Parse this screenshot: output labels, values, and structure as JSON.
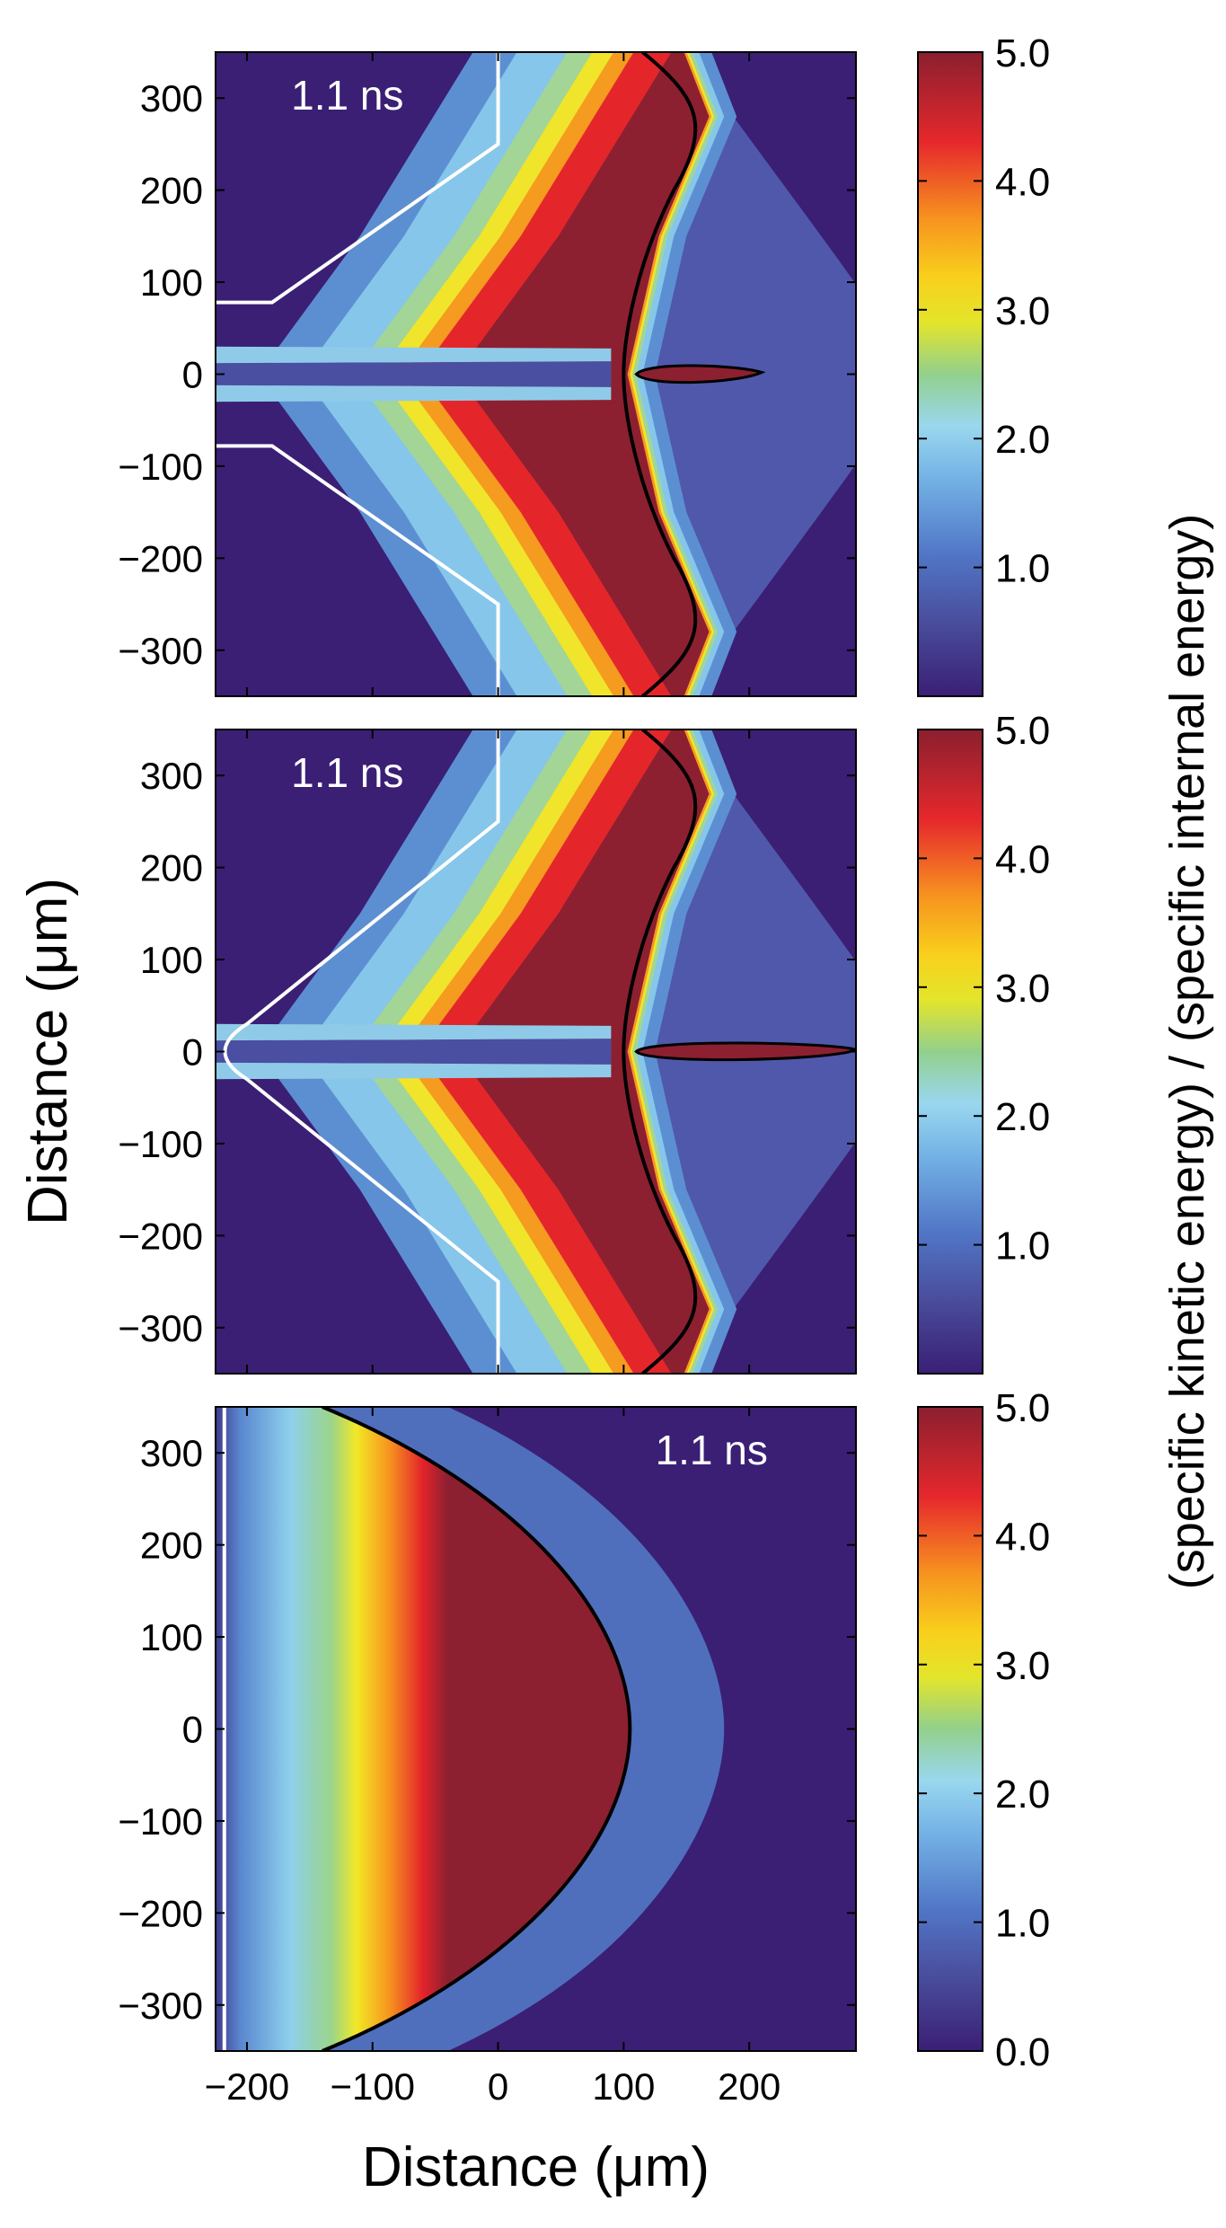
{
  "chart_data": {
    "type": "heatmap",
    "panels": [
      {
        "time_label": "1.1 ns",
        "target_shape": "funnel with flat tip",
        "colorbar_ticks": [
          "1.0",
          "2.0",
          "3.0",
          "4.0",
          "5.0"
        ],
        "colorbar_range": [
          0.0,
          5.0
        ]
      },
      {
        "time_label": "1.1 ns",
        "target_shape": "funnel with rounded tip",
        "colorbar_ticks": [
          "1.0",
          "2.0",
          "3.0",
          "4.0",
          "5.0"
        ],
        "colorbar_range": [
          0.0,
          5.0
        ]
      },
      {
        "time_label": "1.1 ns",
        "target_shape": "flat planar target",
        "colorbar_ticks": [
          "0.0",
          "1.0",
          "2.0",
          "3.0",
          "4.0",
          "5.0"
        ],
        "colorbar_range": [
          0.0,
          5.0
        ]
      }
    ],
    "y_ticks": [
      "300",
      "200",
      "100",
      "0",
      "−100",
      "−200",
      "−300"
    ],
    "x_ticks": [
      "−200",
      "−100",
      "0",
      "100",
      "200"
    ],
    "xlim": [
      -225,
      285
    ],
    "ylim": [
      -350,
      350
    ],
    "xlabel": "Distance (μm)",
    "ylabel": "Distance (μm)",
    "colorbar_label": "(specific kinetic energy) / (specific internal energy)",
    "colormap": [
      "#3a1f75",
      "#4d6cc4",
      "#82c8ec",
      "#93d18c",
      "#f7ec1c",
      "#f79221",
      "#e31f2a",
      "#8c2030"
    ]
  }
}
